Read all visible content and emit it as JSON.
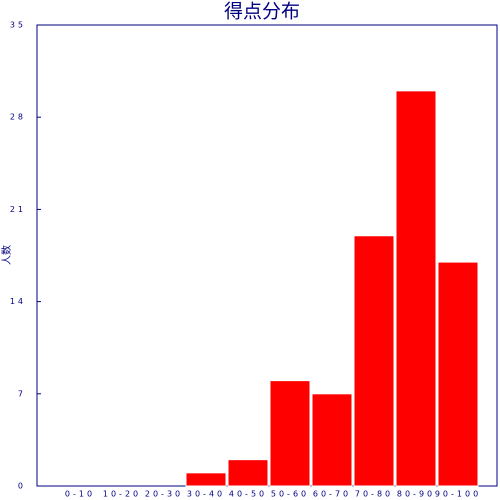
{
  "chart_data": {
    "type": "bar",
    "title": "得点分布",
    "ylabel": "人数",
    "categories": [
      "0-10",
      "10-20",
      "20-30",
      "30-40",
      "40-50",
      "50-60",
      "60-70",
      "70-80",
      "80-90",
      "90-100"
    ],
    "values": [
      0,
      0,
      0,
      1,
      2,
      8,
      7,
      19,
      30,
      17
    ],
    "color": "#ff0000",
    "ylim": [
      0,
      35
    ],
    "yticks": [
      0,
      7,
      14,
      21,
      28,
      35
    ]
  }
}
